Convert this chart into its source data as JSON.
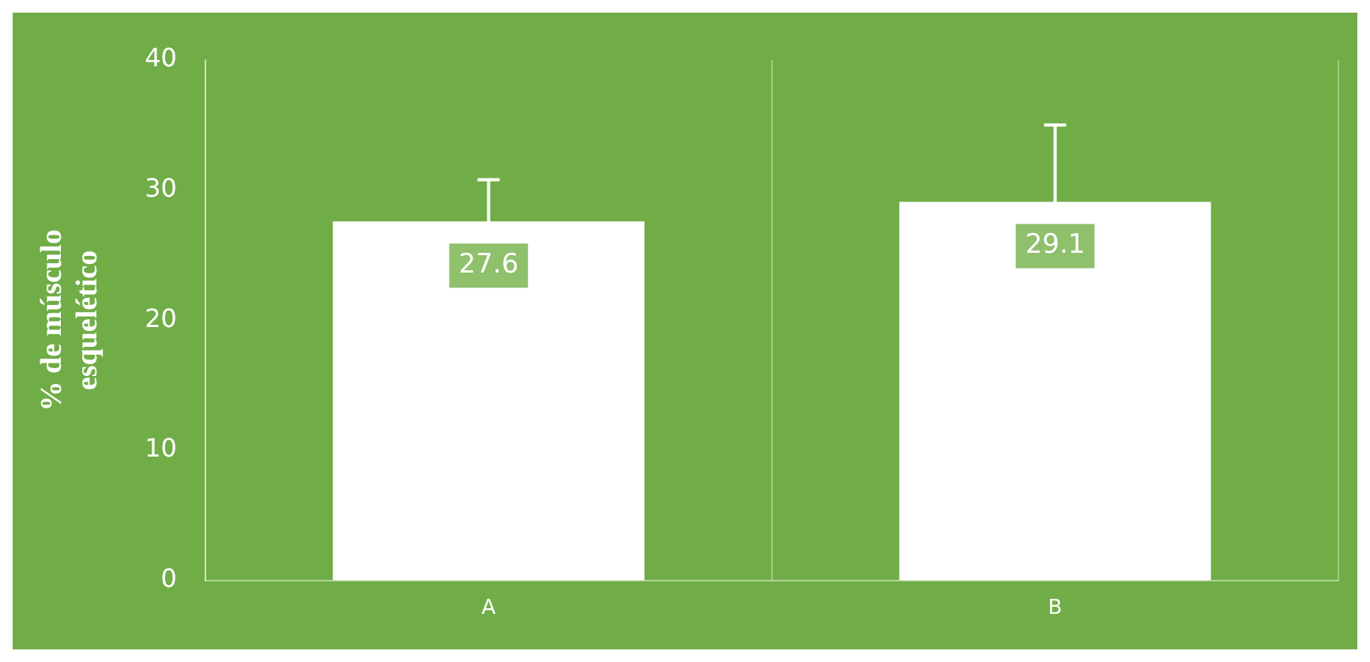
{
  "chart_data": {
    "type": "bar",
    "ylabel": "% de músculo esquelético",
    "categories": [
      "A",
      "B"
    ],
    "values": [
      27.6,
      29.1
    ],
    "color": "#ffffff",
    "errors": [
      3.2,
      5.9
    ],
    "ylim": [
      0,
      40
    ],
    "yticks": [
      0,
      10,
      20,
      30,
      40
    ],
    "grid": "x",
    "data_labels": true
  }
}
